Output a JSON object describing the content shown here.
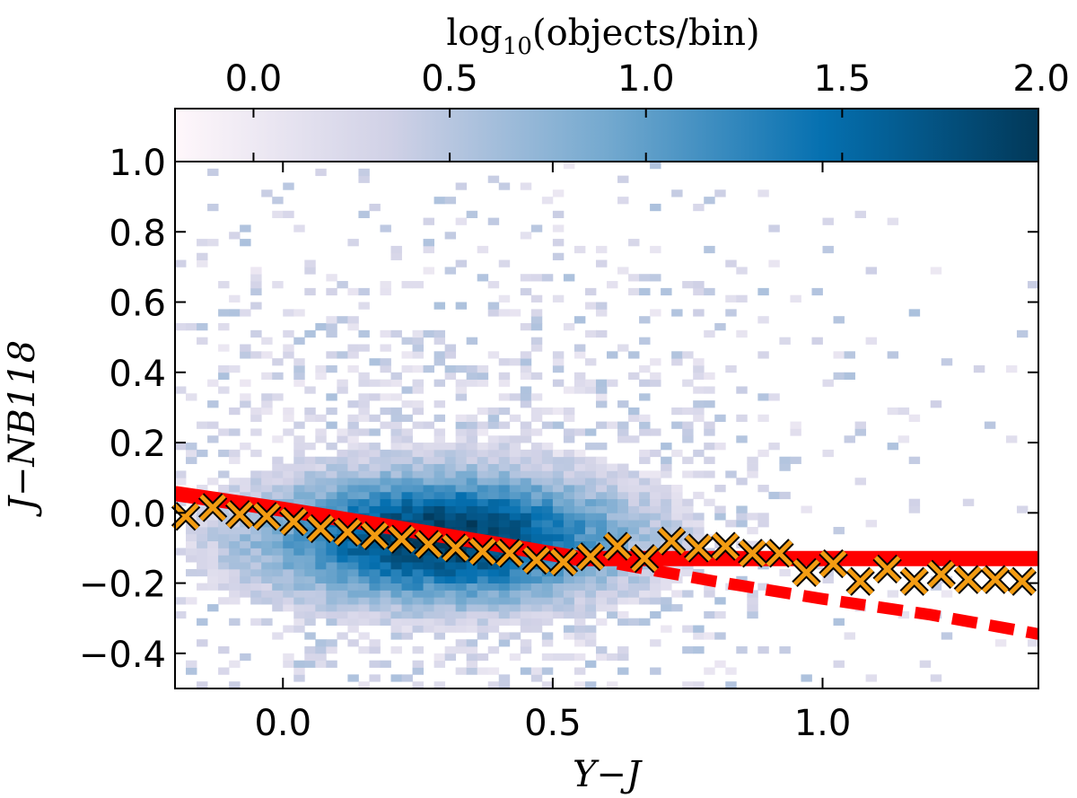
{
  "chart_data": {
    "type": "heatmap",
    "xlabel": "Y−J",
    "ylabel": "J−NB118",
    "xlim": [
      -0.2,
      1.4
    ],
    "ylim": [
      -0.5,
      1.0
    ],
    "xticks": [
      "0.0",
      "0.5",
      "1.0"
    ],
    "xtick_values": [
      0.0,
      0.5,
      1.0
    ],
    "yticks": [
      "1.0",
      "0.8",
      "0.6",
      "0.4",
      "0.2",
      "0.0",
      "−0.2",
      "−0.4"
    ],
    "ytick_values": [
      1.0,
      0.8,
      0.6,
      0.4,
      0.2,
      0.0,
      -0.2,
      -0.4
    ],
    "colorbar": {
      "label_prefix": "log",
      "label_sub": "10",
      "label_rest": "(objects/bin)",
      "ticks": [
        "0.0",
        "0.5",
        "1.0",
        "1.5",
        "2.0"
      ],
      "tick_values": [
        0.0,
        0.5,
        1.0,
        1.5,
        2.0
      ],
      "range": [
        -0.2,
        2.0
      ],
      "colors": [
        "#fff7fb",
        "#d0d1e6",
        "#74a9cf",
        "#0570b0",
        "#023858"
      ]
    },
    "density_model": {
      "core_center": [
        0.3,
        -0.07
      ],
      "peak_log_count": 2.0,
      "bin_width_x": 0.02,
      "bin_height_y": 0.02
    },
    "series": [
      {
        "name": "median points",
        "marker": "x",
        "color": "#f39c12",
        "x": [
          -0.18,
          -0.13,
          -0.08,
          -0.03,
          0.02,
          0.07,
          0.12,
          0.17,
          0.22,
          0.27,
          0.32,
          0.37,
          0.42,
          0.47,
          0.52,
          0.57,
          0.62,
          0.67,
          0.72,
          0.77,
          0.82,
          0.87,
          0.92,
          0.97,
          1.02,
          1.07,
          1.12,
          1.17,
          1.22,
          1.27,
          1.32,
          1.37
        ],
        "y": [
          -0.01,
          0.015,
          -0.005,
          -0.01,
          -0.025,
          -0.045,
          -0.055,
          -0.065,
          -0.075,
          -0.09,
          -0.1,
          -0.11,
          -0.115,
          -0.135,
          -0.14,
          -0.125,
          -0.095,
          -0.13,
          -0.08,
          -0.1,
          -0.095,
          -0.115,
          -0.115,
          -0.17,
          -0.145,
          -0.195,
          -0.16,
          -0.195,
          -0.175,
          -0.19,
          -0.19,
          -0.195
        ]
      },
      {
        "name": "fit solid",
        "style": "solid",
        "color": "#ff0000",
        "x": [
          -0.2,
          0.0,
          0.2,
          0.4,
          0.55,
          0.62,
          0.8,
          1.0,
          1.2,
          1.4
        ],
        "y": [
          0.055,
          0.01,
          -0.04,
          -0.09,
          -0.13,
          -0.13,
          -0.13,
          -0.13,
          -0.13,
          -0.13
        ]
      },
      {
        "name": "fit dashed",
        "style": "dashed",
        "color": "#ff0000",
        "x": [
          0.62,
          0.8,
          1.0,
          1.2,
          1.4
        ],
        "y": [
          -0.145,
          -0.195,
          -0.245,
          -0.29,
          -0.345
        ]
      }
    ]
  }
}
